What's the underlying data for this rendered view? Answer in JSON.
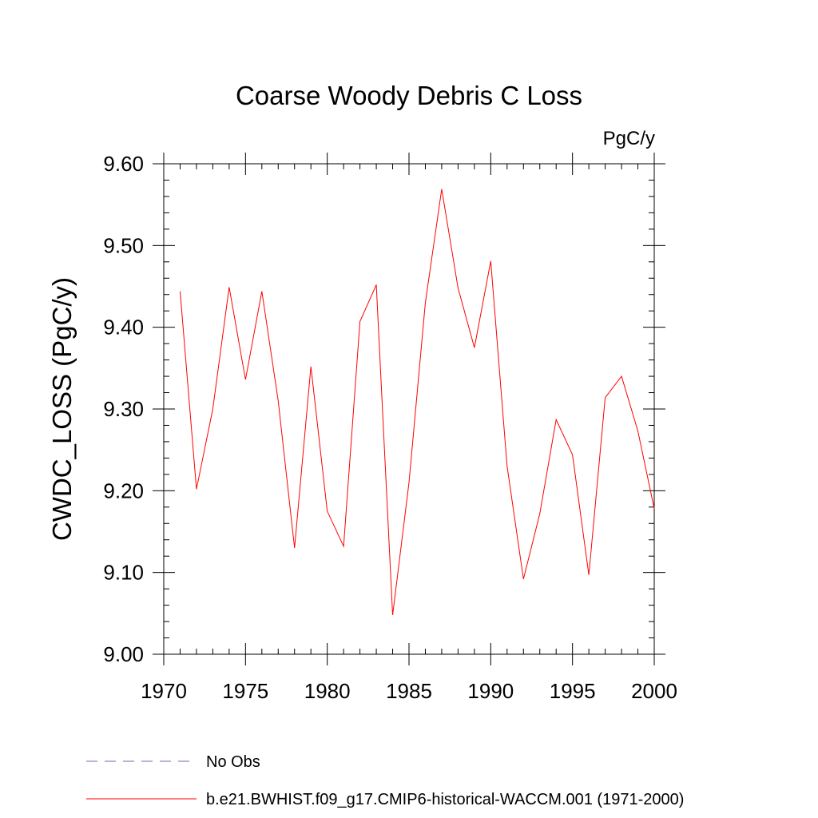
{
  "chart_data": {
    "type": "line",
    "title": "Coarse Woody Debris C Loss",
    "units_label": "PgC/y",
    "ylabel": "CWDC_LOSS  (PgC/y)",
    "xlabel": "",
    "xlim": [
      1970,
      2000
    ],
    "ylim": [
      9.0,
      9.6
    ],
    "x_ticks": [
      1970,
      1975,
      1980,
      1985,
      1990,
      1995,
      2000
    ],
    "x_tick_labels": [
      "1970",
      "1975",
      "1980",
      "1985",
      "1990",
      "1995",
      "2000"
    ],
    "y_ticks": [
      9.0,
      9.1,
      9.2,
      9.3,
      9.4,
      9.5,
      9.6
    ],
    "y_tick_labels": [
      "9.00",
      "9.10",
      "9.20",
      "9.30",
      "9.40",
      "9.50",
      "9.60"
    ],
    "grid": false,
    "legend_position": "bottom-left",
    "series": [
      {
        "name": "b.e21.BWHIST.f09_g17.CMIP6-historical-WACCM.001 (1971-2000)",
        "color": "#ff0000",
        "style": "solid",
        "x": [
          1971,
          1972,
          1973,
          1974,
          1975,
          1976,
          1977,
          1978,
          1979,
          1980,
          1981,
          1982,
          1983,
          1984,
          1985,
          1986,
          1987,
          1988,
          1989,
          1990,
          1991,
          1992,
          1993,
          1994,
          1995,
          1996,
          1997,
          1998,
          1999,
          2000
        ],
        "values": [
          9.444,
          9.202,
          9.3,
          9.449,
          9.336,
          9.444,
          9.31,
          9.13,
          9.352,
          9.175,
          9.132,
          9.407,
          9.452,
          9.048,
          9.21,
          9.43,
          9.569,
          9.448,
          9.375,
          9.481,
          9.23,
          9.092,
          9.172,
          9.287,
          9.244,
          9.097,
          9.314,
          9.34,
          9.273,
          9.178
        ]
      }
    ],
    "legend": [
      {
        "label": "No Obs",
        "color": "#7060c0",
        "style": "dashed"
      },
      {
        "label": "b.e21.BWHIST.f09_g17.CMIP6-historical-WACCM.001 (1971-2000)",
        "color": "#ff0000",
        "style": "solid"
      }
    ]
  }
}
